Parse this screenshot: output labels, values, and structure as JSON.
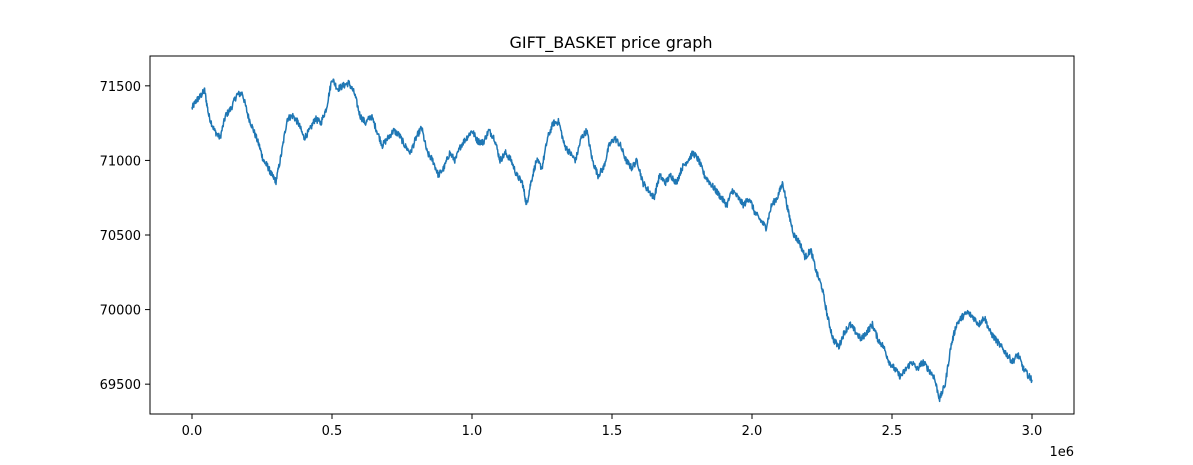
{
  "chart_data": {
    "type": "line",
    "title": "GIFT_BASKET price graph",
    "xlabel": "",
    "ylabel": "",
    "x_scale_label": "1e6",
    "xlim": [
      -150000,
      3150000
    ],
    "ylim": [
      69300,
      71700
    ],
    "xticks": [
      0,
      500000,
      1000000,
      1500000,
      2000000,
      2500000,
      3000000
    ],
    "xtick_labels": [
      "0.0",
      "0.5",
      "1.0",
      "1.5",
      "2.0",
      "2.5",
      "3.0"
    ],
    "yticks": [
      69500,
      70000,
      70500,
      71000,
      71500
    ],
    "ytick_labels": [
      "69500",
      "70000",
      "70500",
      "71000",
      "71500"
    ],
    "grid": false,
    "line_color": "#1f77b4",
    "series": [
      {
        "x": [
          0,
          15000,
          30000,
          45000,
          60000,
          80000,
          100000,
          120000,
          140000,
          160000,
          180000,
          200000,
          220000,
          240000,
          255000,
          270000,
          285000,
          300000,
          320000,
          340000,
          360000,
          380000,
          400000,
          420000,
          440000,
          460000,
          480000,
          500000,
          520000,
          540000,
          560000,
          580000,
          600000,
          620000,
          640000,
          660000,
          680000,
          700000,
          720000,
          740000,
          760000,
          780000,
          800000,
          820000,
          840000,
          860000,
          880000,
          900000,
          920000,
          940000,
          960000,
          980000,
          1000000,
          1020000,
          1040000,
          1060000,
          1080000,
          1100000,
          1120000,
          1140000,
          1160000,
          1180000,
          1195000,
          1210000,
          1230000,
          1250000,
          1270000,
          1290000,
          1310000,
          1330000,
          1350000,
          1370000,
          1390000,
          1410000,
          1430000,
          1450000,
          1470000,
          1490000,
          1510000,
          1530000,
          1550000,
          1570000,
          1590000,
          1610000,
          1630000,
          1650000,
          1670000,
          1690000,
          1710000,
          1730000,
          1750000,
          1770000,
          1790000,
          1810000,
          1830000,
          1850000,
          1870000,
          1890000,
          1910000,
          1930000,
          1950000,
          1970000,
          1990000,
          2010000,
          2030000,
          2050000,
          2070000,
          2090000,
          2110000,
          2130000,
          2150000,
          2170000,
          2190000,
          2210000,
          2230000,
          2250000,
          2270000,
          2290000,
          2310000,
          2330000,
          2350000,
          2370000,
          2390000,
          2410000,
          2430000,
          2450000,
          2470000,
          2490000,
          2510000,
          2530000,
          2550000,
          2570000,
          2590000,
          2610000,
          2630000,
          2650000,
          2670000,
          2690000,
          2710000,
          2730000,
          2750000,
          2770000,
          2790000,
          2810000,
          2830000,
          2850000,
          2870000,
          2890000,
          2910000,
          2930000,
          2950000,
          2970000,
          2990000,
          3000000
        ],
        "values": [
          71350,
          71400,
          71430,
          71470,
          71300,
          71200,
          71150,
          71300,
          71350,
          71440,
          71450,
          71300,
          71200,
          71100,
          71000,
          70960,
          70900,
          70860,
          71050,
          71280,
          71300,
          71250,
          71150,
          71200,
          71280,
          71250,
          71350,
          71550,
          71480,
          71500,
          71520,
          71450,
          71300,
          71250,
          71300,
          71200,
          71100,
          71150,
          71200,
          71170,
          71100,
          71050,
          71150,
          71220,
          71050,
          71000,
          70900,
          70950,
          71050,
          71000,
          71100,
          71150,
          71200,
          71130,
          71120,
          71200,
          71150,
          71000,
          71050,
          71000,
          70900,
          70850,
          70700,
          70850,
          71000,
          70950,
          71150,
          71250,
          71260,
          71100,
          71050,
          71000,
          71150,
          71200,
          71000,
          70900,
          70950,
          71100,
          71150,
          71100,
          71000,
          70950,
          71000,
          70850,
          70800,
          70750,
          70900,
          70850,
          70900,
          70850,
          70950,
          71000,
          71050,
          71000,
          70900,
          70850,
          70800,
          70750,
          70700,
          70800,
          70750,
          70700,
          70750,
          70650,
          70600,
          70550,
          70700,
          70750,
          70850,
          70650,
          70500,
          70450,
          70350,
          70400,
          70250,
          70150,
          69950,
          69800,
          69750,
          69850,
          69900,
          69850,
          69800,
          69850,
          69900,
          69800,
          69750,
          69650,
          69600,
          69550,
          69600,
          69650,
          69600,
          69650,
          69600,
          69550,
          69400,
          69500,
          69750,
          69900,
          69950,
          69980,
          69950,
          69900,
          69950,
          69850,
          69800,
          69750,
          69700,
          69650,
          69700,
          69600,
          69550,
          69530
        ]
      }
    ]
  }
}
